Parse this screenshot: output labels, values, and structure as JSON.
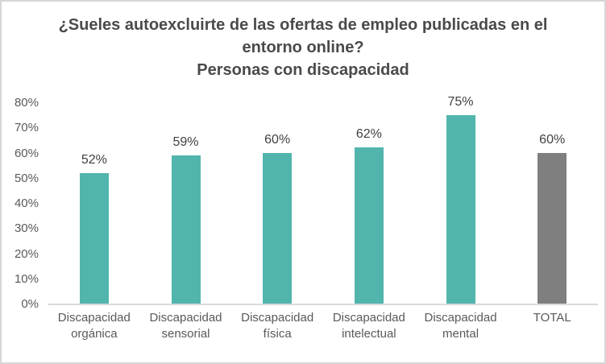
{
  "chart_data": {
    "type": "bar",
    "title": "¿Sueles autoexcluirte de las ofertas de empleo publicadas en el entorno online?",
    "subtitle": "Personas con discapacidad",
    "categories": [
      "Discapacidad orgánica",
      "Discapacidad sensorial",
      "Discapacidad física",
      "Discapacidad intelectual",
      "Discapacidad mental",
      "TOTAL"
    ],
    "values": [
      52,
      59,
      60,
      62,
      75,
      60
    ],
    "value_labels": [
      "52%",
      "59%",
      "60%",
      "62%",
      "75%",
      "60%"
    ],
    "xlabel": "",
    "ylabel": "",
    "ylim": [
      0,
      80
    ],
    "ytick_step": 10,
    "ytick_labels": [
      "0%",
      "10%",
      "20%",
      "30%",
      "40%",
      "50%",
      "60%",
      "70%",
      "80%"
    ],
    "grid": false,
    "legend": "none",
    "bar_colors": [
      "#52b5ad",
      "#52b5ad",
      "#52b5ad",
      "#52b5ad",
      "#52b5ad",
      "#7f7f7f"
    ],
    "colors": {
      "bar_teal": "#52b5ad",
      "bar_gray": "#7f7f7f",
      "axis_line": "#d9d9d9",
      "title_text": "#4a4a4a",
      "tick_text": "#595959",
      "value_text": "#404040",
      "frame_border": "#d6d6d6"
    }
  }
}
